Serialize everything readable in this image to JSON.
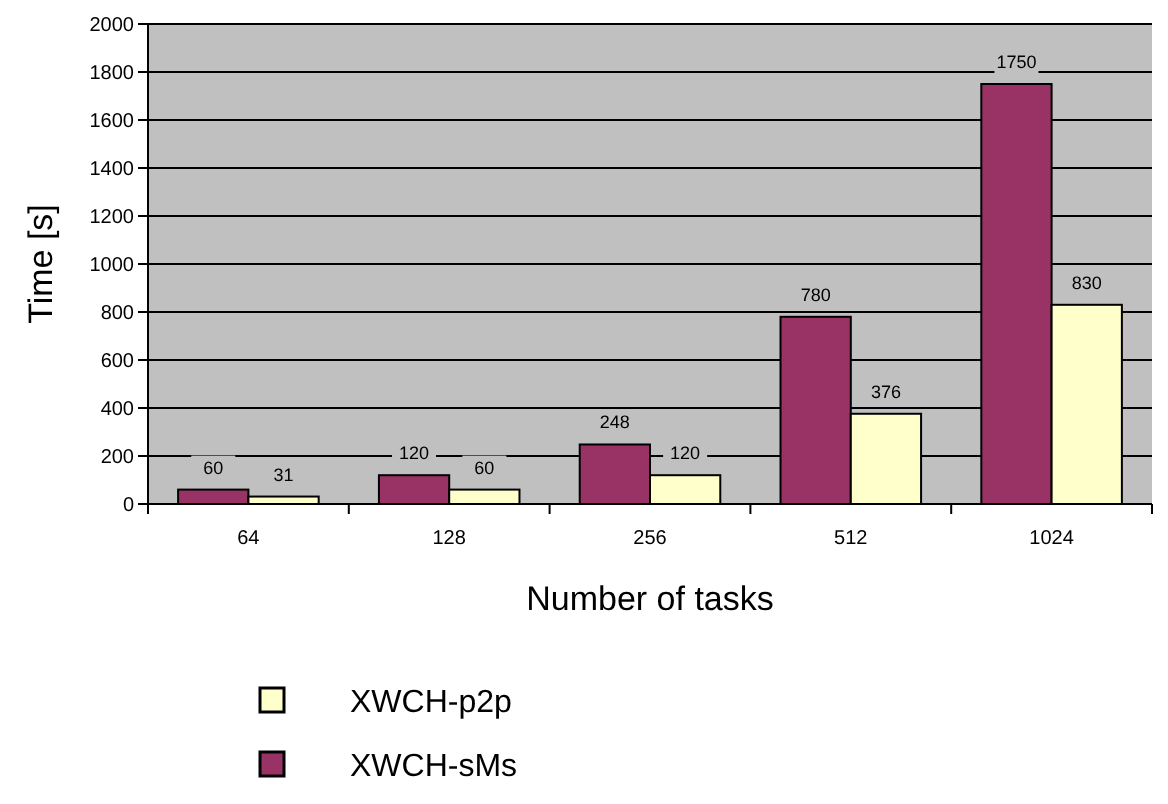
{
  "chart_data": {
    "type": "bar",
    "xlabel": "Number of tasks",
    "ylabel": "Time [s]",
    "categories": [
      "64",
      "128",
      "256",
      "512",
      "1024"
    ],
    "series": [
      {
        "name": "XWCH-sMs",
        "color": "#993366",
        "values": [
          60,
          120,
          248,
          780,
          1750
        ]
      },
      {
        "name": "XWCH-p2p",
        "color": "#ffffcc",
        "values": [
          31,
          60,
          120,
          376,
          830
        ]
      }
    ],
    "ylim": [
      0,
      2000
    ],
    "yticks": [
      0,
      200,
      400,
      600,
      800,
      1000,
      1200,
      1400,
      1600,
      1800,
      2000
    ],
    "grid": "y",
    "legend": "bottom",
    "data_labels": true
  }
}
